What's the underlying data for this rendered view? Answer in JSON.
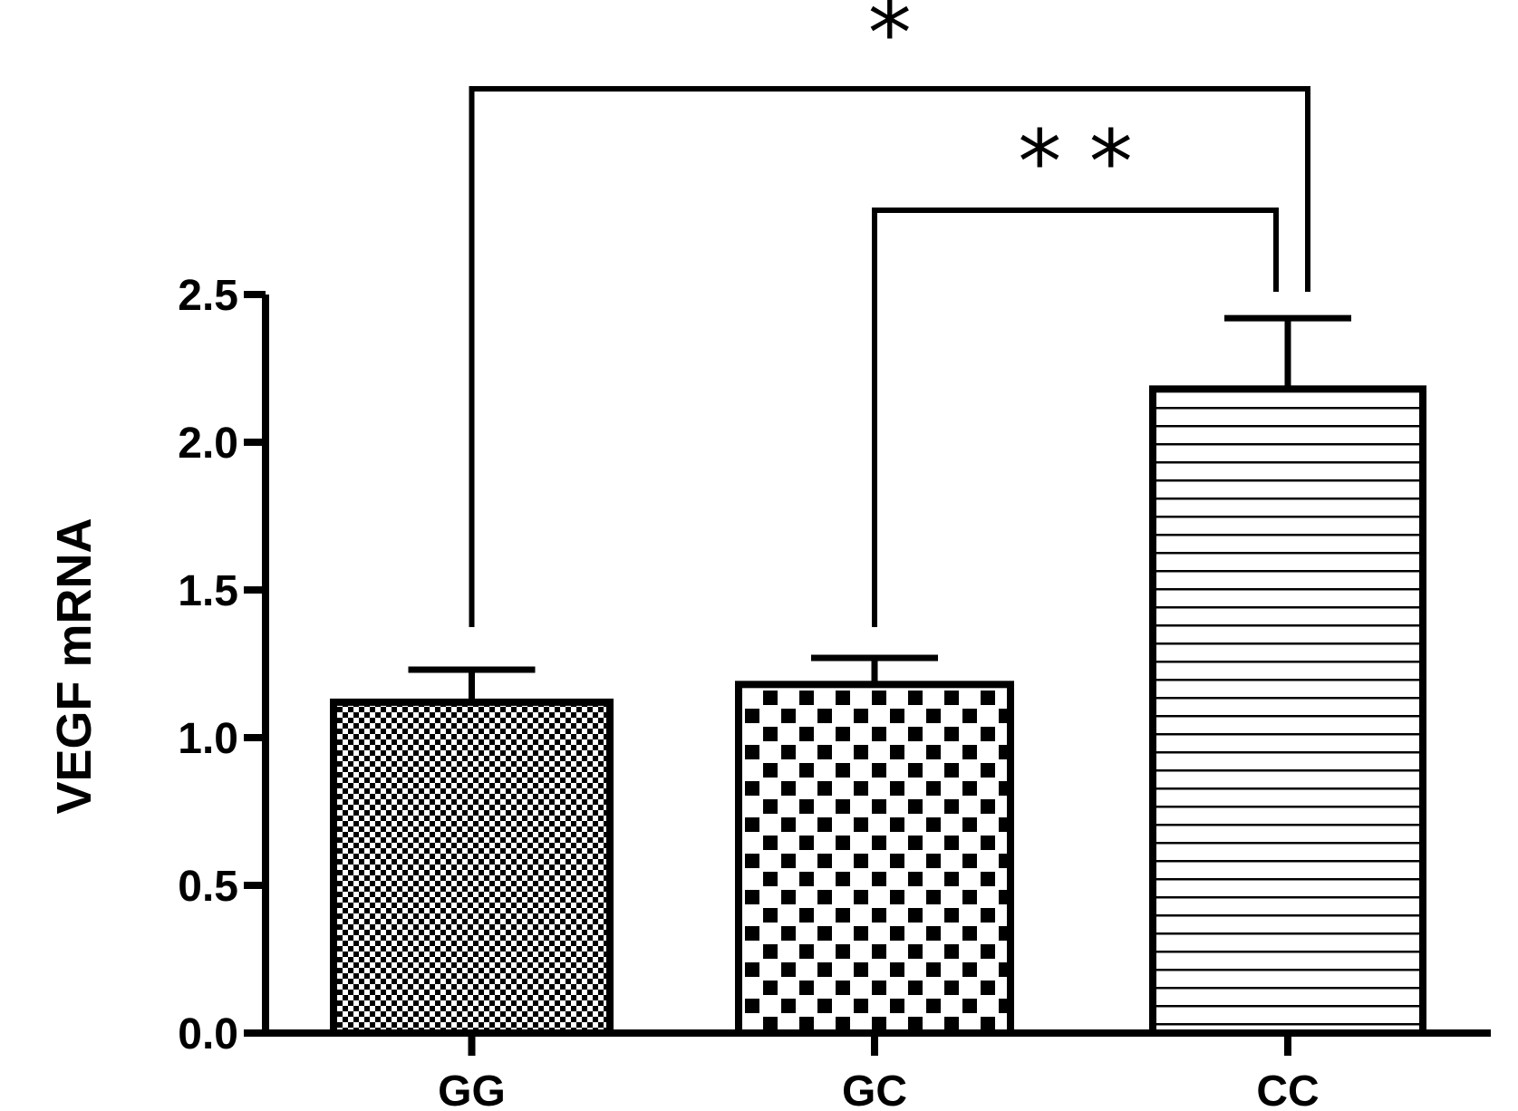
{
  "chart_data": {
    "type": "bar",
    "categories": [
      "GG",
      "GC",
      "CC"
    ],
    "values": [
      1.12,
      1.18,
      2.18
    ],
    "error": [
      0.11,
      0.09,
      0.24
    ],
    "patterns": [
      "fine-checker",
      "coarse-checker",
      "horizontal-lines"
    ],
    "title": "",
    "xlabel": "",
    "ylabel": "VEGF mRNA",
    "ylim": [
      0,
      2.5
    ],
    "yticks": [
      0.0,
      0.5,
      1.0,
      1.5,
      2.0,
      2.5
    ],
    "ytick_labels": [
      "0.0",
      "0.5",
      "1.0",
      "1.5",
      "2.0",
      "2.5"
    ],
    "grid": false,
    "significance": [
      {
        "from": "GG",
        "to": "CC",
        "label": "*"
      },
      {
        "from": "GC",
        "to": "CC",
        "label": "* *"
      }
    ],
    "colors": {
      "ink": "#000000",
      "background": "#ffffff"
    }
  }
}
